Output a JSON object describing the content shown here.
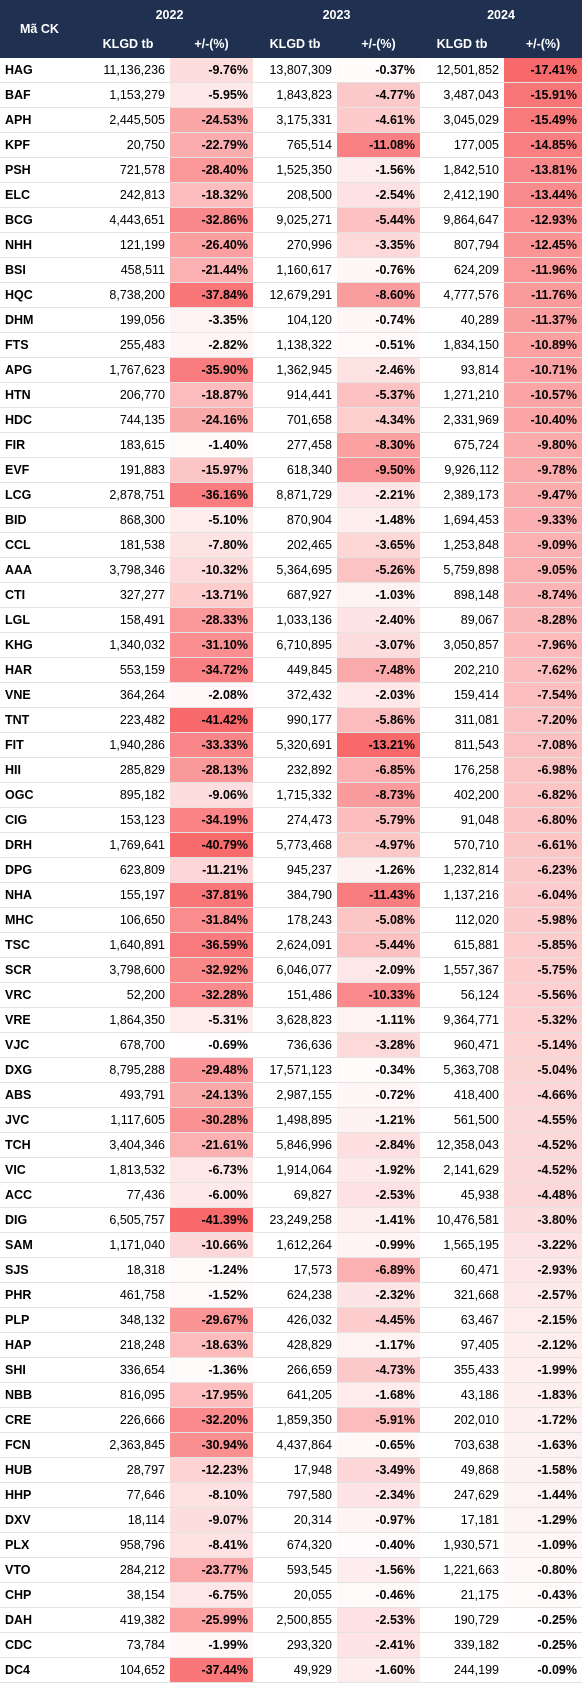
{
  "table": {
    "ticker_header": "Mã CK",
    "groups": [
      {
        "year": "2022",
        "cols": [
          "KLGD tb",
          "+/-(%)"
        ]
      },
      {
        "year": "2023",
        "cols": [
          "KLGD tb",
          "+/-(%)"
        ]
      },
      {
        "year": "2024",
        "cols": [
          "KLGD tb",
          "+/-(%)"
        ]
      }
    ],
    "rows": [
      [
        "HAG",
        "11,136,236",
        "-9.76%",
        "13,807,309",
        "-0.37%",
        "12,501,852",
        "-17.41%"
      ],
      [
        "BAF",
        "1,153,279",
        "-5.95%",
        "1,843,823",
        "-4.77%",
        "3,487,043",
        "-15.91%"
      ],
      [
        "APH",
        "2,445,505",
        "-24.53%",
        "3,175,331",
        "-4.61%",
        "3,045,029",
        "-15.49%"
      ],
      [
        "KPF",
        "20,750",
        "-22.79%",
        "765,514",
        "-11.08%",
        "177,005",
        "-14.85%"
      ],
      [
        "PSH",
        "721,578",
        "-28.40%",
        "1,525,350",
        "-1.56%",
        "1,842,510",
        "-13.81%"
      ],
      [
        "ELC",
        "242,813",
        "-18.32%",
        "208,500",
        "-2.54%",
        "2,412,190",
        "-13.44%"
      ],
      [
        "BCG",
        "4,443,651",
        "-32.86%",
        "9,025,271",
        "-5.44%",
        "9,864,647",
        "-12.93%"
      ],
      [
        "NHH",
        "121,199",
        "-26.40%",
        "270,996",
        "-3.35%",
        "807,794",
        "-12.45%"
      ],
      [
        "BSI",
        "458,511",
        "-21.44%",
        "1,160,617",
        "-0.76%",
        "624,209",
        "-11.96%"
      ],
      [
        "HQC",
        "8,738,200",
        "-37.84%",
        "12,679,291",
        "-8.60%",
        "4,777,576",
        "-11.76%"
      ],
      [
        "DHM",
        "199,056",
        "-3.35%",
        "104,120",
        "-0.74%",
        "40,289",
        "-11.37%"
      ],
      [
        "FTS",
        "255,483",
        "-2.82%",
        "1,138,322",
        "-0.51%",
        "1,834,150",
        "-10.89%"
      ],
      [
        "APG",
        "1,767,623",
        "-35.90%",
        "1,362,945",
        "-2.46%",
        "93,814",
        "-10.71%"
      ],
      [
        "HTN",
        "206,770",
        "-18.87%",
        "914,441",
        "-5.37%",
        "1,271,210",
        "-10.57%"
      ],
      [
        "HDC",
        "744,135",
        "-24.16%",
        "701,658",
        "-4.34%",
        "2,331,969",
        "-10.40%"
      ],
      [
        "FIR",
        "183,615",
        "-1.40%",
        "277,458",
        "-8.30%",
        "675,724",
        "-9.80%"
      ],
      [
        "EVF",
        "191,883",
        "-15.97%",
        "618,340",
        "-9.50%",
        "9,926,112",
        "-9.78%"
      ],
      [
        "LCG",
        "2,878,751",
        "-36.16%",
        "8,871,729",
        "-2.21%",
        "2,389,173",
        "-9.47%"
      ],
      [
        "BID",
        "868,300",
        "-5.10%",
        "870,904",
        "-1.48%",
        "1,694,453",
        "-9.33%"
      ],
      [
        "CCL",
        "181,538",
        "-7.80%",
        "202,465",
        "-3.65%",
        "1,253,848",
        "-9.09%"
      ],
      [
        "AAA",
        "3,798,346",
        "-10.32%",
        "5,364,695",
        "-5.26%",
        "5,759,898",
        "-9.05%"
      ],
      [
        "CTI",
        "327,277",
        "-13.71%",
        "687,927",
        "-1.03%",
        "898,148",
        "-8.74%"
      ],
      [
        "LGL",
        "158,491",
        "-28.33%",
        "1,033,136",
        "-2.40%",
        "89,067",
        "-8.28%"
      ],
      [
        "KHG",
        "1,340,032",
        "-31.10%",
        "6,710,895",
        "-3.07%",
        "3,050,857",
        "-7.96%"
      ],
      [
        "HAR",
        "553,159",
        "-34.72%",
        "449,845",
        "-7.48%",
        "202,210",
        "-7.62%"
      ],
      [
        "VNE",
        "364,264",
        "-2.08%",
        "372,432",
        "-2.03%",
        "159,414",
        "-7.54%"
      ],
      [
        "TNT",
        "223,482",
        "-41.42%",
        "990,177",
        "-5.86%",
        "311,081",
        "-7.20%"
      ],
      [
        "FIT",
        "1,940,286",
        "-33.33%",
        "5,320,691",
        "-13.21%",
        "811,543",
        "-7.08%"
      ],
      [
        "HII",
        "285,829",
        "-28.13%",
        "232,892",
        "-6.85%",
        "176,258",
        "-6.98%"
      ],
      [
        "OGC",
        "895,182",
        "-9.06%",
        "1,715,332",
        "-8.73%",
        "402,200",
        "-6.82%"
      ],
      [
        "CIG",
        "153,123",
        "-34.19%",
        "274,473",
        "-5.79%",
        "91,048",
        "-6.80%"
      ],
      [
        "DRH",
        "1,769,641",
        "-40.79%",
        "5,773,468",
        "-4.97%",
        "570,710",
        "-6.61%"
      ],
      [
        "DPG",
        "623,809",
        "-11.21%",
        "945,237",
        "-1.26%",
        "1,232,814",
        "-6.23%"
      ],
      [
        "NHA",
        "155,197",
        "-37.81%",
        "384,790",
        "-11.43%",
        "1,137,216",
        "-6.04%"
      ],
      [
        "MHC",
        "106,650",
        "-31.84%",
        "178,243",
        "-5.08%",
        "112,020",
        "-5.98%"
      ],
      [
        "TSC",
        "1,640,891",
        "-36.59%",
        "2,624,091",
        "-5.44%",
        "615,881",
        "-5.85%"
      ],
      [
        "SCR",
        "3,798,600",
        "-32.92%",
        "6,046,077",
        "-2.09%",
        "1,557,367",
        "-5.75%"
      ],
      [
        "VRC",
        "52,200",
        "-32.28%",
        "151,486",
        "-10.33%",
        "56,124",
        "-5.56%"
      ],
      [
        "VRE",
        "1,864,350",
        "-5.31%",
        "3,628,823",
        "-1.11%",
        "9,364,771",
        "-5.32%"
      ],
      [
        "VJC",
        "678,700",
        "-0.69%",
        "736,636",
        "-3.28%",
        "960,471",
        "-5.14%"
      ],
      [
        "DXG",
        "8,795,288",
        "-29.48%",
        "17,571,123",
        "-0.34%",
        "5,363,708",
        "-5.04%"
      ],
      [
        "ABS",
        "493,791",
        "-24.13%",
        "2,987,155",
        "-0.72%",
        "418,400",
        "-4.66%"
      ],
      [
        "JVC",
        "1,117,605",
        "-30.28%",
        "1,498,895",
        "-1.21%",
        "561,500",
        "-4.55%"
      ],
      [
        "TCH",
        "3,404,346",
        "-21.61%",
        "5,846,996",
        "-2.84%",
        "12,358,043",
        "-4.52%"
      ],
      [
        "VIC",
        "1,813,532",
        "-6.73%",
        "1,914,064",
        "-1.92%",
        "2,141,629",
        "-4.52%"
      ],
      [
        "ACC",
        "77,436",
        "-6.00%",
        "69,827",
        "-2.53%",
        "45,938",
        "-4.48%"
      ],
      [
        "DIG",
        "6,505,757",
        "-41.39%",
        "23,249,258",
        "-1.41%",
        "10,476,581",
        "-3.80%"
      ],
      [
        "SAM",
        "1,171,040",
        "-10.66%",
        "1,612,264",
        "-0.99%",
        "1,565,195",
        "-3.22%"
      ],
      [
        "SJS",
        "18,318",
        "-1.24%",
        "17,573",
        "-6.89%",
        "60,471",
        "-2.93%"
      ],
      [
        "PHR",
        "461,758",
        "-1.52%",
        "624,238",
        "-2.32%",
        "321,668",
        "-2.57%"
      ],
      [
        "PLP",
        "348,132",
        "-29.67%",
        "426,032",
        "-4.45%",
        "63,467",
        "-2.15%"
      ],
      [
        "HAP",
        "218,248",
        "-18.63%",
        "428,829",
        "-1.17%",
        "97,405",
        "-2.12%"
      ],
      [
        "SHI",
        "336,654",
        "-1.36%",
        "266,659",
        "-4.73%",
        "355,433",
        "-1.99%"
      ],
      [
        "NBB",
        "816,095",
        "-17.95%",
        "641,205",
        "-1.68%",
        "43,186",
        "-1.83%"
      ],
      [
        "CRE",
        "226,666",
        "-32.20%",
        "1,859,350",
        "-5.91%",
        "202,010",
        "-1.72%"
      ],
      [
        "FCN",
        "2,363,845",
        "-30.94%",
        "4,437,864",
        "-0.65%",
        "703,638",
        "-1.63%"
      ],
      [
        "HUB",
        "28,797",
        "-12.23%",
        "17,948",
        "-3.49%",
        "49,868",
        "-1.58%"
      ],
      [
        "HHP",
        "77,646",
        "-8.10%",
        "797,580",
        "-2.34%",
        "247,629",
        "-1.44%"
      ],
      [
        "DXV",
        "18,114",
        "-9.07%",
        "20,314",
        "-0.97%",
        "17,181",
        "-1.29%"
      ],
      [
        "PLX",
        "958,796",
        "-8.41%",
        "674,320",
        "-0.40%",
        "1,930,571",
        "-1.09%"
      ],
      [
        "VTO",
        "284,212",
        "-23.77%",
        "593,545",
        "-1.56%",
        "1,221,663",
        "-0.80%"
      ],
      [
        "CHP",
        "38,154",
        "-6.75%",
        "20,055",
        "-0.46%",
        "21,175",
        "-0.43%"
      ],
      [
        "DAH",
        "419,382",
        "-25.99%",
        "2,500,855",
        "-2.53%",
        "190,729",
        "-0.25%"
      ],
      [
        "CDC",
        "73,784",
        "-1.99%",
        "293,320",
        "-2.41%",
        "339,182",
        "-0.25%"
      ],
      [
        "DC4",
        "104,652",
        "-37.44%",
        "49,929",
        "-1.60%",
        "244,199",
        "-0.09%"
      ]
    ]
  }
}
